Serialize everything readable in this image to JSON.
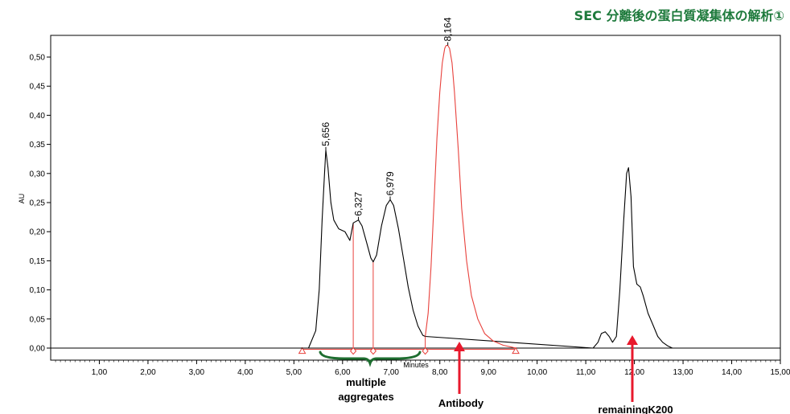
{
  "chart_data": {
    "type": "line",
    "title": "SEC 分離後の蛋白質凝集体の解析①",
    "xlabel": "Minutes",
    "ylabel": "AU",
    "xlim": [
      0,
      15
    ],
    "ylim": [
      -0.02,
      0.54
    ],
    "x_ticks": [
      "1,00",
      "2,00",
      "3,00",
      "4,00",
      "5,00",
      "6,00",
      "7,00",
      "8,00",
      "9,00",
      "10,00",
      "11,00",
      "12,00",
      "13,00",
      "14,00",
      "15,00"
    ],
    "y_ticks": [
      "0,00",
      "0,05",
      "0,10",
      "0,15",
      "0,20",
      "0,25",
      "0,30",
      "0,35",
      "0,40",
      "0,45",
      "0,50"
    ],
    "grid": false,
    "series": [
      {
        "color": "#000000",
        "x": [
          0.0,
          5.3,
          5.45,
          5.52,
          5.58,
          5.63,
          5.656,
          5.7,
          5.76,
          5.82,
          5.92,
          6.05,
          6.15,
          6.22,
          6.327,
          6.4,
          6.5,
          6.58,
          6.63,
          6.7,
          6.8,
          6.9,
          6.979,
          7.05,
          7.15,
          7.25,
          7.35,
          7.45,
          7.55,
          7.65,
          7.7,
          11.15,
          11.25,
          11.32,
          11.4,
          11.48,
          11.55,
          11.63,
          11.7,
          11.78,
          11.84,
          11.88,
          11.93,
          11.98,
          12.05,
          12.12,
          12.18,
          12.28,
          12.38,
          12.48,
          12.58,
          12.68,
          12.78,
          13.0,
          15.0
        ],
        "y": [
          0.0,
          0.0,
          0.03,
          0.1,
          0.22,
          0.3,
          0.34,
          0.31,
          0.25,
          0.22,
          0.205,
          0.2,
          0.185,
          0.215,
          0.22,
          0.21,
          0.18,
          0.155,
          0.148,
          0.16,
          0.21,
          0.245,
          0.255,
          0.245,
          0.205,
          0.155,
          0.105,
          0.065,
          0.038,
          0.022,
          0.02,
          0.0,
          0.01,
          0.025,
          0.028,
          0.02,
          0.01,
          0.02,
          0.1,
          0.22,
          0.3,
          0.31,
          0.26,
          0.14,
          0.11,
          0.105,
          0.09,
          0.06,
          0.04,
          0.02,
          0.01,
          0.004,
          0.0,
          0.0,
          0.0
        ]
      },
      {
        "color": "#e8413c",
        "x": [
          7.7,
          7.76,
          7.82,
          7.88,
          7.94,
          8.0,
          8.05,
          8.1,
          8.13,
          8.164,
          8.2,
          8.25,
          8.3,
          8.38,
          8.45,
          8.55,
          8.65,
          8.78,
          8.92,
          9.1,
          9.3,
          9.56
        ],
        "y": [
          0.02,
          0.06,
          0.14,
          0.25,
          0.36,
          0.44,
          0.49,
          0.515,
          0.52,
          0.52,
          0.515,
          0.49,
          0.44,
          0.34,
          0.24,
          0.15,
          0.09,
          0.05,
          0.025,
          0.012,
          0.005,
          0.0
        ]
      }
    ],
    "peak_labels": [
      {
        "x": 5.656,
        "y": 0.34,
        "label": "5,656"
      },
      {
        "x": 6.327,
        "y": 0.22,
        "label": "6,327"
      },
      {
        "x": 6.979,
        "y": 0.255,
        "label": "6,979"
      },
      {
        "x": 8.164,
        "y": 0.52,
        "label": "8,164"
      }
    ],
    "annotations": {
      "aggregates": "multiple\naggregates",
      "antibody": "Antibody",
      "k200": "remainingK200"
    }
  }
}
